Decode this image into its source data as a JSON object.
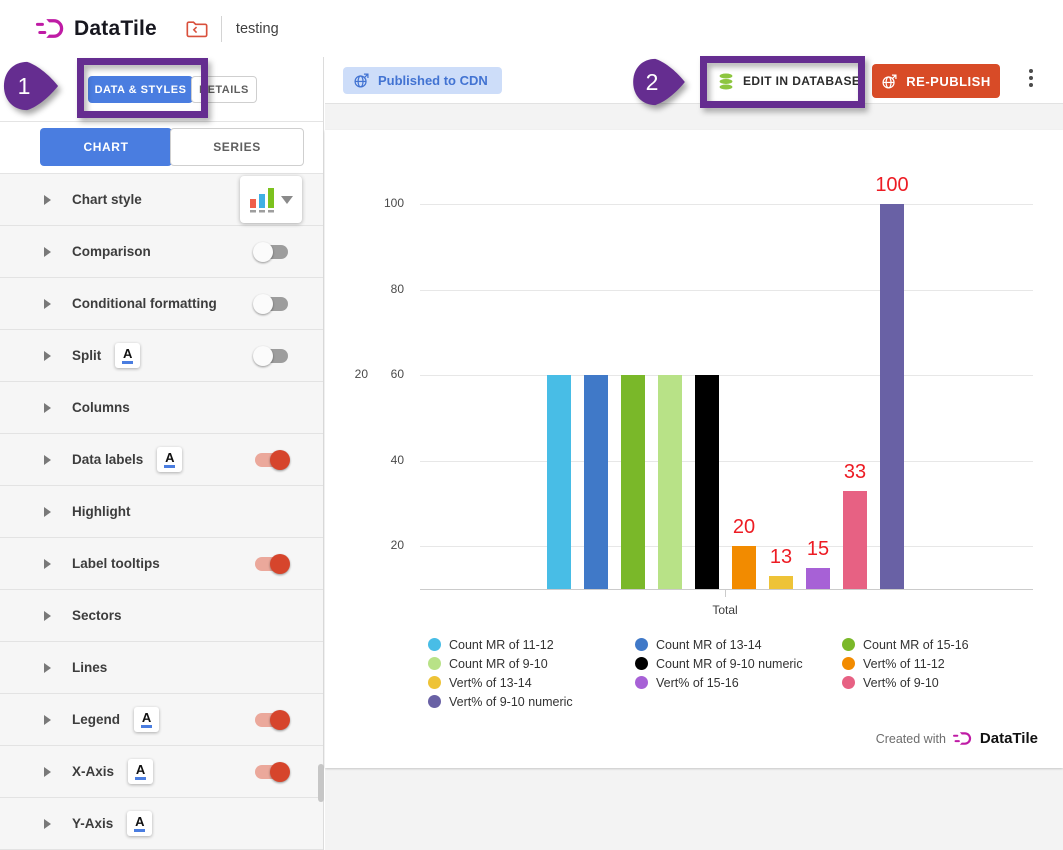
{
  "header": {
    "brand": "DataTile",
    "breadcrumb": "testing"
  },
  "annotations": {
    "callout_1": "1",
    "callout_2": "2"
  },
  "sidebar": {
    "tabs": [
      {
        "label": "DATA & STYLES",
        "active": true
      },
      {
        "label": "DETAILS",
        "active": false
      }
    ],
    "subtabs": [
      {
        "label": "CHART",
        "active": true
      },
      {
        "label": "SERIES",
        "active": false
      }
    ],
    "items": [
      {
        "label": "Chart style",
        "control": "style-picker"
      },
      {
        "label": "Comparison",
        "toggle": "off"
      },
      {
        "label": "Conditional formatting",
        "toggle": "off"
      },
      {
        "label": "Split",
        "format_icon": true,
        "toggle": "off"
      },
      {
        "label": "Columns"
      },
      {
        "label": "Data labels",
        "format_icon": true,
        "toggle": "on"
      },
      {
        "label": "Highlight"
      },
      {
        "label": "Label tooltips",
        "toggle": "on"
      },
      {
        "label": "Sectors"
      },
      {
        "label": "Lines"
      },
      {
        "label": "Legend",
        "format_icon": true,
        "toggle": "on"
      },
      {
        "label": "X-Axis",
        "format_icon": true,
        "toggle": "on"
      },
      {
        "label": "Y-Axis",
        "format_icon": true
      }
    ]
  },
  "toolbar": {
    "published_chip": "Published to CDN",
    "edit_in_database": "EDIT IN DATABASE",
    "republish": "RE-PUBLISH"
  },
  "icons": {
    "format_letter": "A"
  },
  "colors": {
    "accent_blue": "#4a7de0",
    "republish_red": "#d84b27",
    "annotation_purple": "#652d90",
    "data_label_red": "#ed1c24",
    "toggle_on": "#d6452c",
    "database_green": "#8dc63f",
    "brand_magenta": "#bf1ba5"
  },
  "chart_data": {
    "type": "bar",
    "title": "",
    "categories": [
      "Total"
    ],
    "series": [
      {
        "name": "Count MR of 11-12",
        "color": "#48bde6",
        "axis": "count",
        "value": 20,
        "display_pct": 60,
        "data_label": null
      },
      {
        "name": "Count MR of 13-14",
        "color": "#4079c8",
        "axis": "count",
        "value": 20,
        "display_pct": 60,
        "data_label": null
      },
      {
        "name": "Count MR of 15-16",
        "color": "#7ab829",
        "axis": "count",
        "value": 20,
        "display_pct": 60,
        "data_label": null
      },
      {
        "name": "Count MR of 9-10",
        "color": "#b8e287",
        "axis": "count",
        "value": 20,
        "display_pct": 60,
        "data_label": null
      },
      {
        "name": "Count MR of 9-10 numeric",
        "color": "#000000",
        "axis": "count",
        "value": 20,
        "display_pct": 60,
        "data_label": null
      },
      {
        "name": "Vert% of 11-12",
        "color": "#f28b00",
        "axis": "percent",
        "value": 20,
        "display_pct": 20,
        "data_label": "20"
      },
      {
        "name": "Vert% of 13-14",
        "color": "#eec337",
        "axis": "percent",
        "value": 13,
        "display_pct": 13,
        "data_label": "13"
      },
      {
        "name": "Vert% of 15-16",
        "color": "#a761d6",
        "axis": "percent",
        "value": 15,
        "display_pct": 15,
        "data_label": "15"
      },
      {
        "name": "Vert% of 9-10",
        "color": "#e76183",
        "axis": "percent",
        "value": 33,
        "display_pct": 33,
        "data_label": "33"
      },
      {
        "name": "Vert% of 9-10 numeric",
        "color": "#6961a5",
        "axis": "percent",
        "value": 100,
        "display_pct": 100,
        "data_label": "100"
      }
    ],
    "y_axis": {
      "min": 10,
      "ticks": [
        20,
        40,
        60,
        80,
        100
      ]
    },
    "secondary_y_axis": {
      "tick": 20,
      "aligned_with_primary": 60
    },
    "xlabel": "",
    "ylabel": "",
    "grid": true,
    "legend_position": "bottom"
  },
  "footer": {
    "created_with": "Created with",
    "brand": "DataTile"
  }
}
